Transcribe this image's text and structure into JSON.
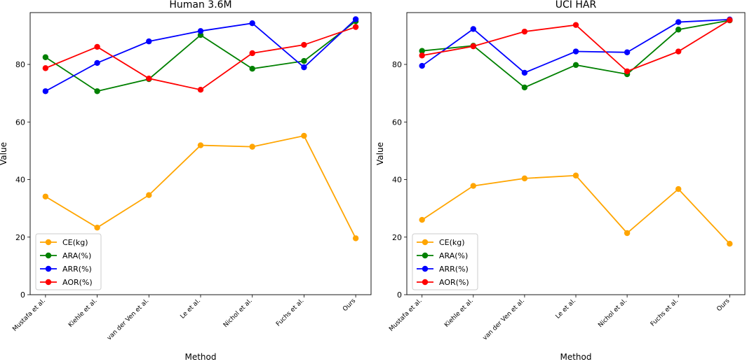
{
  "chart_data": [
    {
      "type": "line",
      "title": "Human 3.6M",
      "xlabel": "Method",
      "ylabel": "Value",
      "ylim": [
        0,
        98
      ],
      "yticks": [
        0,
        20,
        40,
        60,
        80
      ],
      "categories": [
        "Mustafa et al.",
        "Kiehle et al.",
        "van der Ven et al.",
        "Le et al.",
        "Nichol et al.",
        "Fuchs et al.",
        "Ours"
      ],
      "legend_position": "lower-left",
      "series": [
        {
          "name": "CE(kg)",
          "color": "#ffa500",
          "values": [
            34.1,
            23.3,
            34.6,
            51.9,
            51.4,
            55.2,
            19.6
          ]
        },
        {
          "name": "ARA(%)",
          "color": "#008000",
          "values": [
            82.5,
            70.7,
            74.9,
            90.2,
            78.5,
            81.2,
            95.0
          ]
        },
        {
          "name": "ARR(%)",
          "color": "#0000ff",
          "values": [
            70.7,
            80.5,
            88.0,
            91.6,
            94.3,
            79.0,
            95.7
          ]
        },
        {
          "name": "AOR(%)",
          "color": "#ff0000",
          "values": [
            78.7,
            86.1,
            75.1,
            71.2,
            83.9,
            86.8,
            93.0
          ]
        }
      ]
    },
    {
      "type": "line",
      "title": "UCI HAR",
      "xlabel": "Method",
      "ylabel": "Value",
      "ylim": [
        0,
        98
      ],
      "yticks": [
        0,
        20,
        40,
        60,
        80
      ],
      "categories": [
        "Mustafa et al.",
        "Kiehle et al.",
        "van der Ven et al.",
        "Le et al.",
        "Nichol et al.",
        "Fuchs et al.",
        "Ours"
      ],
      "legend_position": "lower-left",
      "series": [
        {
          "name": "CE(kg)",
          "color": "#ffa500",
          "values": [
            26.0,
            37.8,
            40.4,
            41.4,
            21.4,
            36.7,
            17.7
          ]
        },
        {
          "name": "ARA(%)",
          "color": "#008000",
          "values": [
            84.7,
            86.5,
            72.0,
            79.8,
            76.6,
            92.1,
            95.3
          ]
        },
        {
          "name": "ARR(%)",
          "color": "#0000ff",
          "values": [
            79.5,
            92.3,
            77.1,
            84.5,
            84.2,
            94.7,
            95.6
          ]
        },
        {
          "name": "AOR(%)",
          "color": "#ff0000",
          "values": [
            83.1,
            86.3,
            91.4,
            93.7,
            77.6,
            84.5,
            95.4
          ]
        }
      ]
    }
  ]
}
